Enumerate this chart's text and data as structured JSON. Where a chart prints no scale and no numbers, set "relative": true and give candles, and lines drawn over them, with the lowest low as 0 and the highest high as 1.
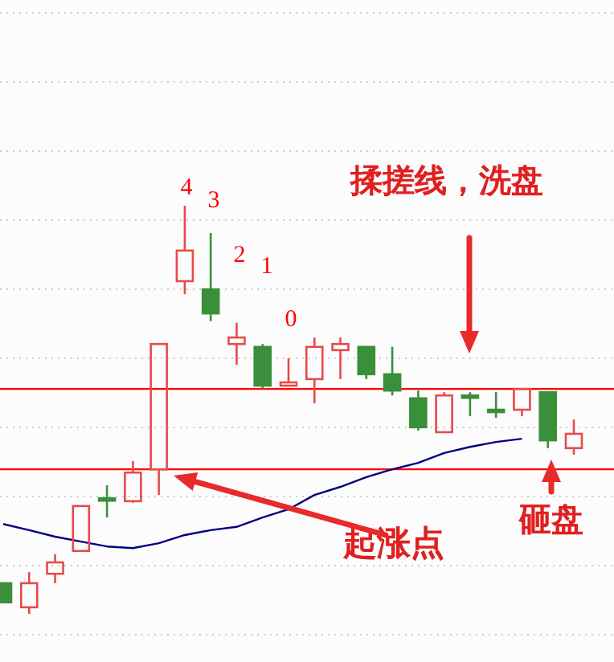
{
  "chart_data": {
    "type": "candlestick",
    "relative": true,
    "grid": "y",
    "categories": [
      null,
      null,
      null,
      null,
      null,
      null,
      null,
      null,
      null,
      null,
      null,
      null,
      null,
      null,
      null,
      null,
      null,
      null,
      null,
      null,
      null,
      null,
      null
    ],
    "ohlc": [
      [
        0.075,
        0.075,
        0.028,
        0.028
      ],
      [
        0.016,
        0.102,
        0,
        0.075
      ],
      [
        0.098,
        0.146,
        0.075,
        0.126
      ],
      [
        0.154,
        0.264,
        0.154,
        0.264
      ],
      [
        0.283,
        0.315,
        0.236,
        0.281
      ],
      [
        0.276,
        0.374,
        0.272,
        0.346
      ],
      [
        0.354,
        0.661,
        0.291,
        0.661
      ],
      [
        0.815,
        1,
        0.783,
        0.89
      ],
      [
        0.795,
        0.933,
        0.717,
        0.736
      ],
      [
        0.661,
        0.713,
        0.61,
        0.677
      ],
      [
        0.654,
        0.661,
        0.551,
        0.559
      ],
      [
        0.559,
        0.626,
        0.559,
        0.567
      ],
      [
        0.575,
        0.677,
        0.516,
        0.654
      ],
      [
        0.646,
        0.677,
        0.575,
        0.661
      ],
      [
        0.654,
        0.654,
        0.575,
        0.587
      ],
      [
        0.587,
        0.654,
        0.535,
        0.547
      ],
      [
        0.528,
        0.547,
        0.449,
        0.457
      ],
      [
        0.445,
        0.543,
        0.445,
        0.535
      ],
      [
        0.535,
        0.543,
        0.484,
        0.531
      ],
      [
        0.5,
        0.543,
        0.48,
        0.496
      ],
      [
        0.5,
        0.551,
        0.484,
        0.551
      ],
      [
        0.543,
        0.543,
        0.406,
        0.425
      ],
      [
        0.406,
        0.476,
        0.39,
        0.441
      ]
    ],
    "series": [
      {
        "type": "line",
        "color": "#000080",
        "values": [
          0.22,
          0.205,
          0.189,
          0.177,
          0.165,
          0.161,
          0.173,
          0.193,
          0.205,
          0.213,
          0.236,
          0.256,
          0.291,
          0.311,
          0.335,
          0.354,
          0.37,
          0.394,
          0.409,
          0.421,
          0.429,
          null,
          null
        ]
      }
    ],
    "ref_lines": [
      {
        "axis": "y",
        "value": 0.551,
        "color": "#ff0000"
      },
      {
        "axis": "y",
        "value": 0.354,
        "color": "#ff0000"
      }
    ],
    "annotations": [
      "4",
      "3",
      "2",
      "1",
      "0",
      "揉搓线，洗盘",
      "起涨点",
      "砸盘"
    ]
  }
}
